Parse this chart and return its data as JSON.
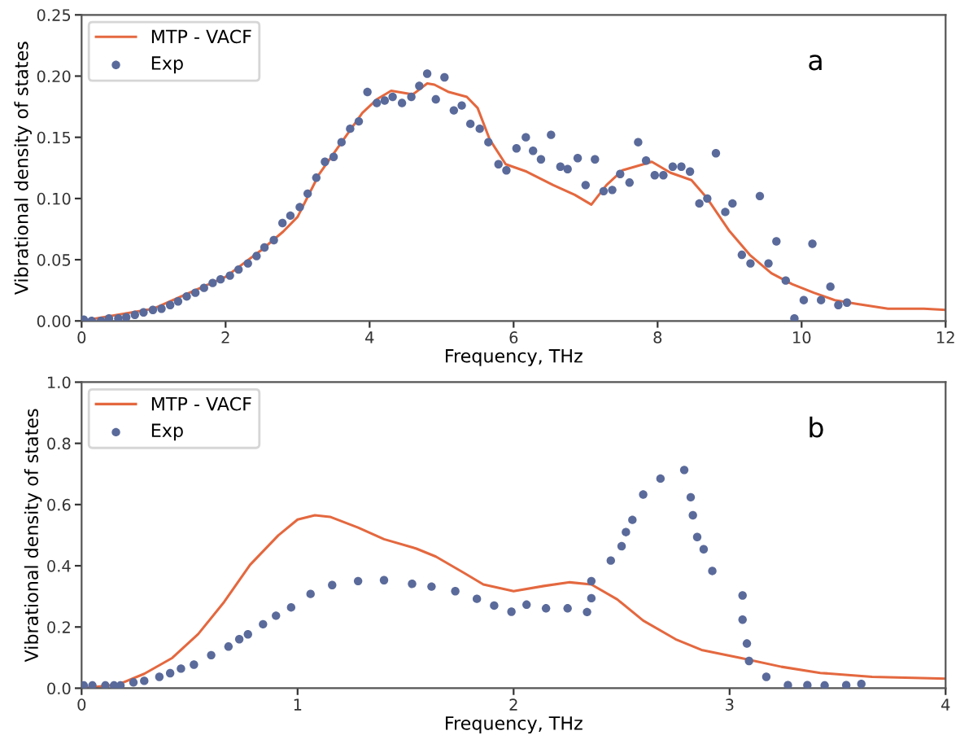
{
  "chart_data": [
    {
      "type": "line",
      "ylabel": "Vibrational density of states",
      "xlabel": "Frequency, THz",
      "annotations": [
        "a"
      ],
      "xlim": [
        0,
        12
      ],
      "ylim": [
        0,
        0.25
      ],
      "xticks": [
        0,
        2,
        4,
        6,
        8,
        10,
        12
      ],
      "yticks": [
        {
          "value": 0,
          "label": "0.00"
        },
        {
          "value": 0.05,
          "label": "0.05"
        },
        {
          "value": 0.1,
          "label": "0.10"
        },
        {
          "value": 0.15,
          "label": "0.15"
        },
        {
          "value": 0.2,
          "label": "0.20"
        },
        {
          "value": 0.25,
          "label": "0.25"
        }
      ],
      "legend": "top left",
      "grid": false,
      "series": [
        {
          "name": "MTP - VACF",
          "color": "#e4683f",
          "marker": "none",
          "line_style": "solid",
          "x": [
            0,
            1,
            2,
            2.5,
            2.8,
            3.0,
            3.3,
            3.6,
            3.9,
            4.1,
            4.3,
            4.5,
            4.6,
            4.8,
            4.9,
            5.1,
            5.35,
            5.5,
            5.67,
            5.89,
            6.18,
            6.55,
            6.85,
            7.08,
            7.29,
            7.51,
            7.92,
            8.18,
            8.47,
            8.69,
            8.99,
            9.28,
            9.58,
            9.87,
            10.17,
            10.46,
            10.76,
            11.2,
            11.7,
            12
          ],
          "values": [
            0,
            0.01,
            0.036,
            0.058,
            0.073,
            0.085,
            0.12,
            0.145,
            0.17,
            0.181,
            0.188,
            0.186,
            0.185,
            0.194,
            0.193,
            0.187,
            0.183,
            0.174,
            0.148,
            0.128,
            0.122,
            0.111,
            0.103,
            0.095,
            0.111,
            0.123,
            0.13,
            0.121,
            0.115,
            0.1,
            0.074,
            0.054,
            0.039,
            0.03,
            0.023,
            0.017,
            0.014,
            0.01,
            0.01,
            0.009
          ]
        },
        {
          "name": "Exp",
          "type": "scatter",
          "color": "#5a6a9a",
          "marker": "circle",
          "x": [
            0.03,
            0.14,
            0.27,
            0.38,
            0.51,
            0.62,
            0.74,
            0.86,
            0.99,
            1.11,
            1.23,
            1.34,
            1.46,
            1.58,
            1.7,
            1.82,
            1.93,
            2.06,
            2.18,
            2.31,
            2.43,
            2.54,
            2.67,
            2.79,
            2.9,
            3.03,
            3.14,
            3.26,
            3.38,
            3.5,
            3.61,
            3.73,
            3.85,
            3.97,
            4.1,
            4.21,
            4.32,
            4.45,
            4.58,
            4.69,
            4.8,
            4.92,
            5.04,
            5.17,
            5.28,
            5.4,
            5.53,
            5.65,
            5.79,
            5.9,
            6.04,
            6.17,
            6.27,
            6.38,
            6.52,
            6.65,
            6.75,
            6.89,
            7.0,
            7.13,
            7.25,
            7.37,
            7.48,
            7.61,
            7.73,
            7.84,
            7.96,
            8.08,
            8.21,
            8.33,
            8.45,
            8.58,
            8.69,
            8.81,
            8.94,
            9.04,
            9.17,
            9.29,
            9.42,
            9.54,
            9.65,
            9.78,
            9.9,
            10.03,
            10.15,
            10.27,
            10.4,
            10.51,
            10.63
          ],
          "values": [
            0.001,
            0.0,
            0.0,
            0.002,
            0.002,
            0.003,
            0.005,
            0.007,
            0.009,
            0.01,
            0.013,
            0.016,
            0.02,
            0.023,
            0.027,
            0.031,
            0.034,
            0.037,
            0.042,
            0.047,
            0.053,
            0.06,
            0.066,
            0.08,
            0.086,
            0.093,
            0.104,
            0.117,
            0.13,
            0.134,
            0.146,
            0.157,
            0.163,
            0.187,
            0.178,
            0.18,
            0.183,
            0.178,
            0.183,
            0.192,
            0.202,
            0.181,
            0.199,
            0.172,
            0.176,
            0.161,
            0.157,
            0.146,
            0.128,
            0.123,
            0.141,
            0.15,
            0.139,
            0.132,
            0.152,
            0.126,
            0.124,
            0.133,
            0.111,
            0.132,
            0.106,
            0.107,
            0.12,
            0.113,
            0.146,
            0.131,
            0.119,
            0.119,
            0.126,
            0.126,
            0.122,
            0.096,
            0.1,
            0.137,
            0.089,
            0.096,
            0.054,
            0.047,
            0.102,
            0.047,
            0.065,
            0.033,
            0.002,
            0.017,
            0.063,
            0.017,
            0.028,
            0.013,
            0.015
          ]
        }
      ]
    },
    {
      "type": "line",
      "ylabel": "Vibrational density of states",
      "xlabel": "Frequency, THz",
      "annotations": [
        "b"
      ],
      "xlim": [
        0,
        4
      ],
      "ylim": [
        0,
        1.0
      ],
      "xticks": [
        0,
        1,
        2,
        3,
        4
      ],
      "yticks": [
        {
          "value": 0,
          "label": "0.0"
        },
        {
          "value": 0.2,
          "label": "0.2"
        },
        {
          "value": 0.4,
          "label": "0.4"
        },
        {
          "value": 0.6,
          "label": "0.6"
        },
        {
          "value": 0.8,
          "label": "0.8"
        },
        {
          "value": 1.0,
          "label": "1.0"
        }
      ],
      "legend": "top left",
      "grid": false,
      "series": [
        {
          "name": "MTP - VACF",
          "color": "#e4683f",
          "marker": "none",
          "line_style": "solid",
          "x": [
            0,
            0.17,
            0.29,
            0.42,
            0.54,
            0.66,
            0.78,
            0.91,
            1.0,
            1.08,
            1.15,
            1.28,
            1.4,
            1.55,
            1.64,
            1.77,
            1.86,
            2.0,
            2.14,
            2.26,
            2.36,
            2.48,
            2.6,
            2.75,
            2.87,
            3.05,
            3.24,
            3.42,
            3.66,
            4.0
          ],
          "values": [
            0,
            0.012,
            0.047,
            0.099,
            0.177,
            0.282,
            0.403,
            0.499,
            0.551,
            0.565,
            0.56,
            0.525,
            0.487,
            0.456,
            0.43,
            0.377,
            0.339,
            0.317,
            0.334,
            0.346,
            0.339,
            0.29,
            0.221,
            0.16,
            0.125,
            0.099,
            0.07,
            0.05,
            0.037,
            0.031
          ]
        },
        {
          "name": "Exp",
          "type": "scatter",
          "color": "#5a6a9a",
          "marker": "circle",
          "x": [
            0.01,
            0.05,
            0.11,
            0.15,
            0.18,
            0.24,
            0.29,
            0.36,
            0.41,
            0.46,
            0.52,
            0.6,
            0.68,
            0.73,
            0.77,
            0.84,
            0.9,
            0.97,
            1.06,
            1.16,
            1.28,
            1.4,
            1.53,
            1.62,
            1.73,
            1.83,
            1.91,
            1.99,
            2.06,
            2.15,
            2.25,
            2.34,
            2.36,
            2.36,
            2.45,
            2.5,
            2.52,
            2.55,
            2.6,
            2.68,
            2.79,
            2.82,
            2.83,
            2.85,
            2.88,
            2.92,
            3.06,
            3.06,
            3.08,
            3.09,
            3.17,
            3.27,
            3.36,
            3.44,
            3.54,
            3.61
          ],
          "values": [
            0.009,
            0.009,
            0.009,
            0.009,
            0.009,
            0.019,
            0.024,
            0.037,
            0.049,
            0.064,
            0.077,
            0.108,
            0.136,
            0.16,
            0.176,
            0.209,
            0.237,
            0.264,
            0.308,
            0.337,
            0.35,
            0.353,
            0.341,
            0.332,
            0.317,
            0.292,
            0.27,
            0.25,
            0.273,
            0.261,
            0.261,
            0.249,
            0.294,
            0.35,
            0.417,
            0.464,
            0.51,
            0.55,
            0.633,
            0.685,
            0.713,
            0.624,
            0.565,
            0.494,
            0.454,
            0.383,
            0.303,
            0.224,
            0.146,
            0.089,
            0.037,
            0.01,
            0.01,
            0.009,
            0.01,
            0.014
          ]
        }
      ]
    }
  ]
}
